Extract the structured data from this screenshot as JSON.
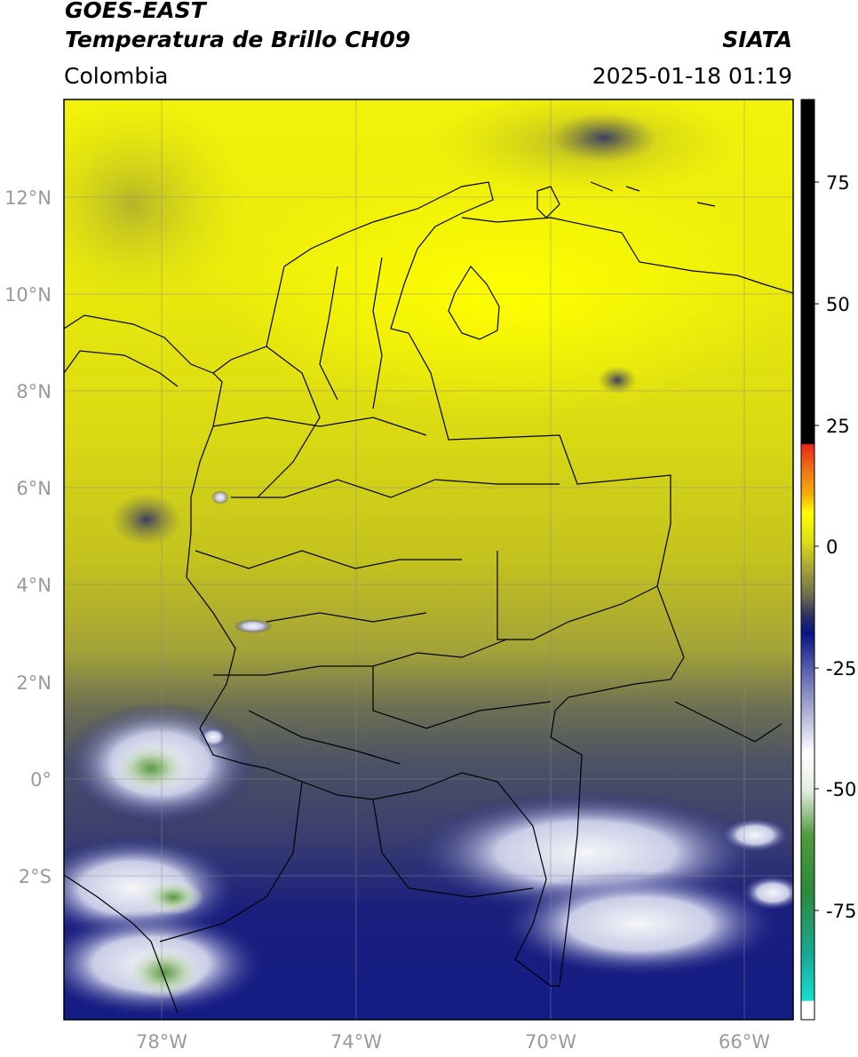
{
  "header": {
    "satellite": "GOES-EAST",
    "product": "Temperatura de Brillo CH09",
    "institution": "SIATA",
    "region": "Colombia",
    "datetime": "2025-01-18 01:19"
  },
  "map": {
    "lon_range": [
      -80.0,
      -65.0
    ],
    "lat_range": [
      -4.9,
      14.0
    ],
    "lat_ticks": [
      "12°N",
      "10°N",
      "8°N",
      "6°N",
      "4°N",
      "2°N",
      "0°",
      "2°S"
    ],
    "lon_ticks": [
      "78°W",
      "74°W",
      "70°W",
      "66°W"
    ],
    "grid": true
  },
  "colorbar": {
    "range": [
      -100,
      90
    ],
    "tick_labels": [
      "75",
      "50",
      "25",
      "0",
      "-25",
      "-50",
      "-75"
    ],
    "colors": {
      "warm_black": "#000000",
      "red": "#e8261b",
      "orange": "#f39a12",
      "yellow": "#ffff00",
      "olive": "#9e9c3a",
      "gray": "#5b5f66",
      "navy": "#0b1485",
      "pale": "#e8eaf2",
      "green": "#2e7d1e",
      "cyan": "#18d6c8",
      "white": "#ffffff"
    }
  }
}
